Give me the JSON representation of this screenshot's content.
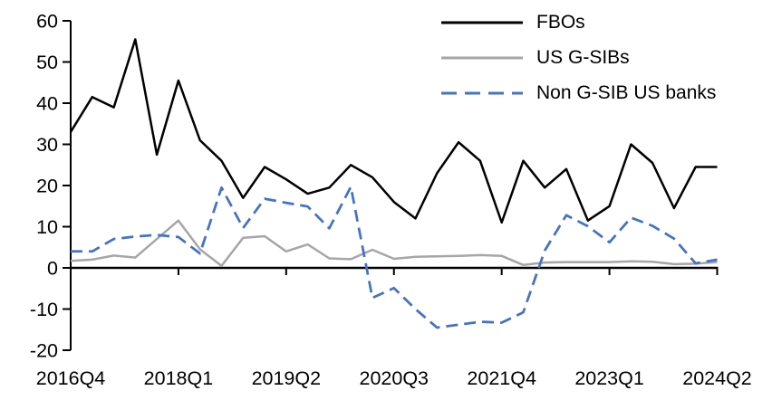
{
  "chart_data": {
    "type": "line",
    "title": "",
    "xlabel": "",
    "ylabel": "",
    "grid": false,
    "legend_position": "top-right",
    "axis_color": "#000000",
    "ylim": [
      -20,
      60
    ],
    "y_ticks": [
      -20,
      -10,
      0,
      10,
      20,
      30,
      40,
      50,
      60
    ],
    "y_tick_labels": [
      "-20",
      "-10",
      "0",
      "10",
      "20",
      "30",
      "40",
      "50",
      "60"
    ],
    "x_categories": [
      "2016Q4",
      "2017Q1",
      "2017Q2",
      "2017Q3",
      "2017Q4",
      "2018Q1",
      "2018Q2",
      "2018Q3",
      "2018Q4",
      "2019Q1",
      "2019Q2",
      "2019Q3",
      "2019Q4",
      "2020Q1",
      "2020Q2",
      "2020Q3",
      "2020Q4",
      "2021Q1",
      "2021Q2",
      "2021Q3",
      "2021Q4",
      "2022Q1",
      "2022Q2",
      "2022Q3",
      "2022Q4",
      "2023Q1",
      "2023Q2",
      "2023Q3",
      "2023Q4",
      "2024Q1",
      "2024Q2"
    ],
    "x_tick_indices": [
      0,
      5,
      10,
      15,
      20,
      25,
      30
    ],
    "x_tick_labels": [
      "2016Q4",
      "2018Q1",
      "2019Q2",
      "2020Q3",
      "2021Q4",
      "2023Q1",
      "2024Q2"
    ],
    "series": [
      {
        "name": "FBOs",
        "color": "#000000",
        "style": "solid",
        "values": [
          33,
          41.5,
          39,
          55.5,
          27.5,
          45.5,
          31,
          26,
          17,
          24.5,
          21.5,
          18,
          19.5,
          25,
          22,
          16,
          12,
          23,
          30.5,
          26,
          11,
          26,
          19.5,
          24,
          11.5,
          15,
          30,
          25.5,
          14.5,
          24.5,
          24.5
        ]
      },
      {
        "name": "US G-SIBs",
        "color": "#a6a6a6",
        "style": "solid",
        "values": [
          1.7,
          2,
          3,
          2.5,
          7,
          11.5,
          4.5,
          0.5,
          7.3,
          7.7,
          4,
          5.7,
          2.3,
          2.1,
          4.4,
          2.2,
          2.7,
          2.8,
          2.9,
          3.1,
          2.9,
          0.7,
          1.3,
          1.4,
          1.4,
          1.4,
          1.6,
          1.5,
          0.9,
          1,
          1.4
        ]
      },
      {
        "name": "Non G-SIB US banks",
        "color": "#4472c4",
        "style": "dashed",
        "values": [
          4,
          4,
          7,
          7.6,
          8,
          7.5,
          3.5,
          19.5,
          9.7,
          16.8,
          15.8,
          14.9,
          9.6,
          19.7,
          -7.3,
          -4.9,
          -10,
          -14.5,
          -13.8,
          -13.1,
          -13.3,
          -10.8,
          4.2,
          12.8,
          10.1,
          6.2,
          12.2,
          10.2,
          7.1,
          1.1,
          2
        ]
      }
    ]
  }
}
